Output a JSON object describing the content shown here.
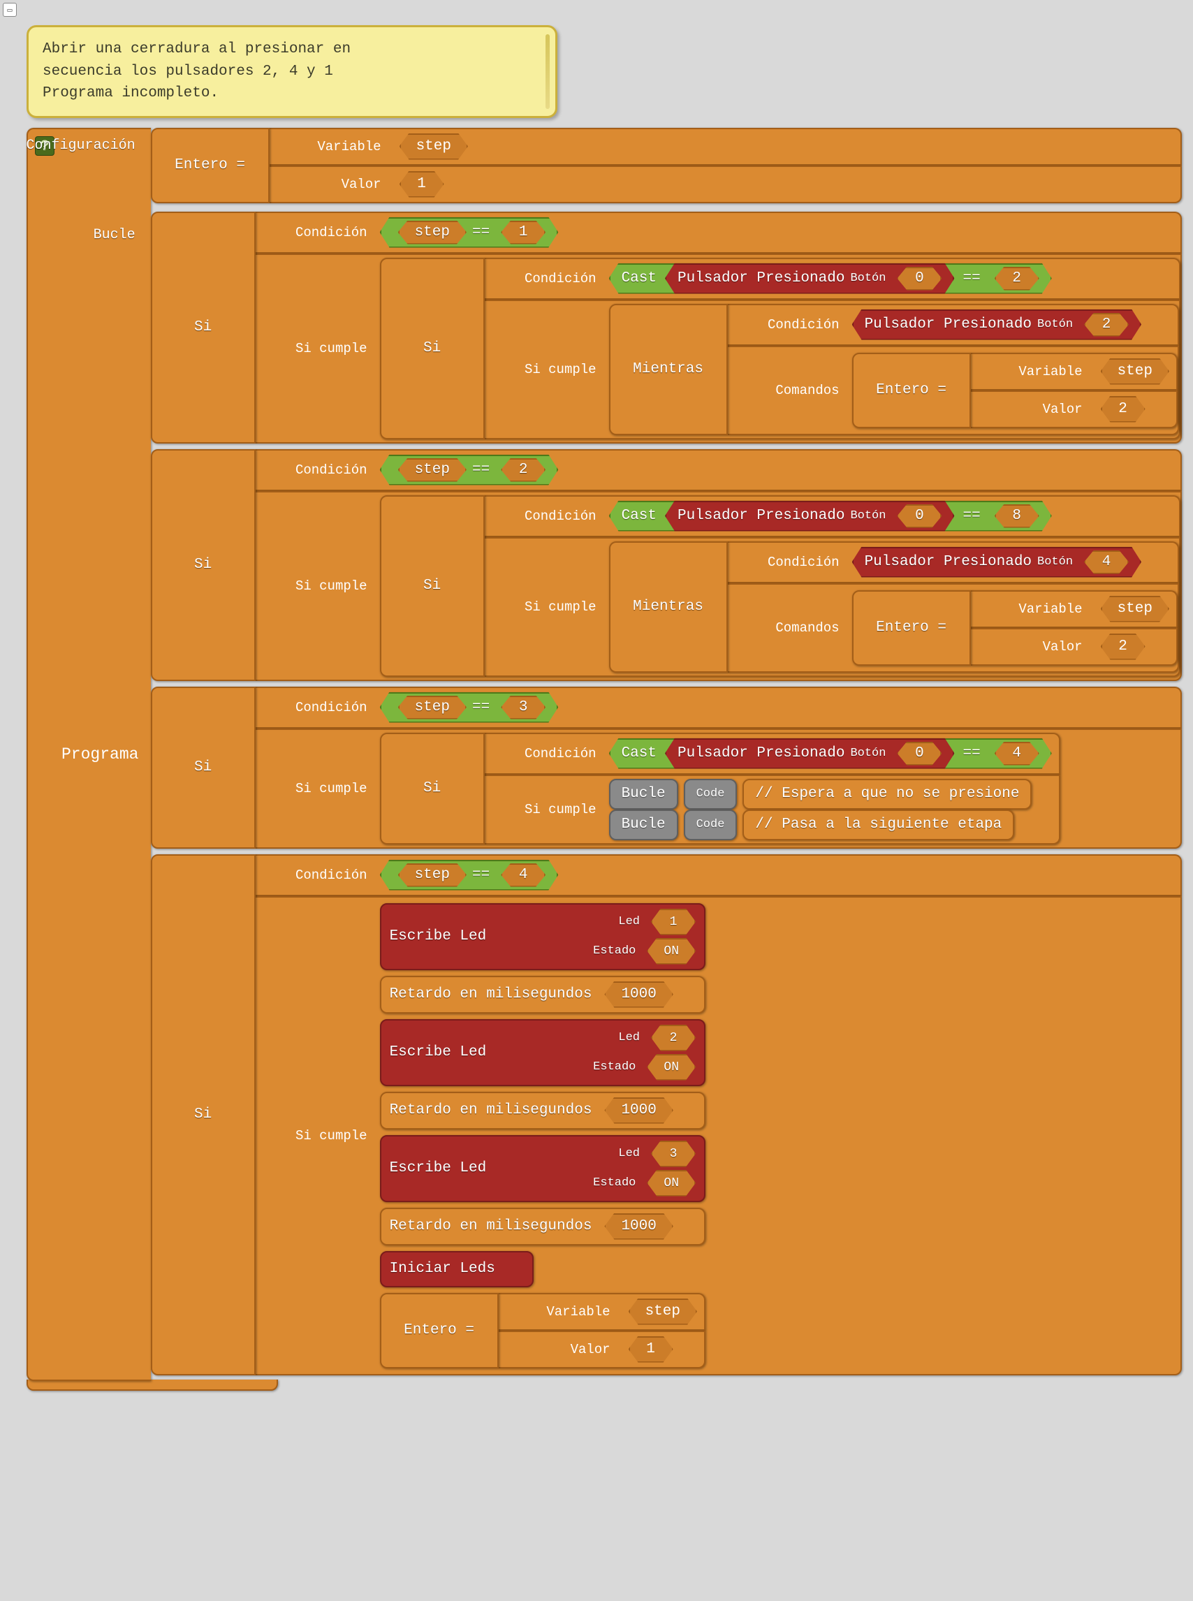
{
  "note": {
    "line1": "Abrir una cerradura al presionar en",
    "line2": "secuencia los pulsadores 2, 4 y 1",
    "line3": "Programa incompleto."
  },
  "labels": {
    "programa": "Programa",
    "configuracion": "Configuración",
    "bucle": "Bucle",
    "si": "Si",
    "mientras": "Mientras",
    "condicion": "Condición",
    "si_cumple": "Si cumple",
    "comandos": "Comandos",
    "entero": "Entero =",
    "variable": "Variable",
    "valor": "Valor",
    "cast": "Cast",
    "pulsador": "Pulsador Presionado",
    "boton": "Botón",
    "eq": "==",
    "escribe_led": "Escribe Led",
    "led": "Led",
    "estado": "Estado",
    "retardo": "Retardo en milisegundos",
    "iniciar_leds": "Iniciar Leds",
    "bucle_small": "Bucle",
    "code": "Code",
    "help": "?"
  },
  "config": {
    "var": "step",
    "val": "1"
  },
  "branches": [
    {
      "cond_var": "step",
      "cond_val": "1",
      "inner": {
        "cast_btn": "0",
        "cast_eq": "2",
        "while_btn": "2",
        "set_var": "step",
        "set_val": "2"
      }
    },
    {
      "cond_var": "step",
      "cond_val": "2",
      "inner": {
        "cast_btn": "0",
        "cast_eq": "8",
        "while_btn": "4",
        "set_var": "step",
        "set_val": "2"
      }
    },
    {
      "cond_var": "step",
      "cond_val": "3",
      "inner": {
        "cast_btn": "0",
        "cast_eq": "4",
        "comment1": "// Espera a que no se presione",
        "comment2": "// Pasa a la siguiente etapa"
      }
    }
  ],
  "branch4": {
    "cond_var": "step",
    "cond_val": "4",
    "leds": [
      {
        "n": "1",
        "state": "ON"
      },
      {
        "n": "2",
        "state": "ON"
      },
      {
        "n": "3",
        "state": "ON"
      }
    ],
    "delay": "1000",
    "final_var": "step",
    "final_val": "1"
  },
  "colors": {
    "orange": "#db8a31",
    "green": "#7cb63d",
    "red": "#a82926",
    "grey": "#8a8a8a",
    "yellow": "#f7ef9e",
    "bg": "#d9d9d9"
  }
}
